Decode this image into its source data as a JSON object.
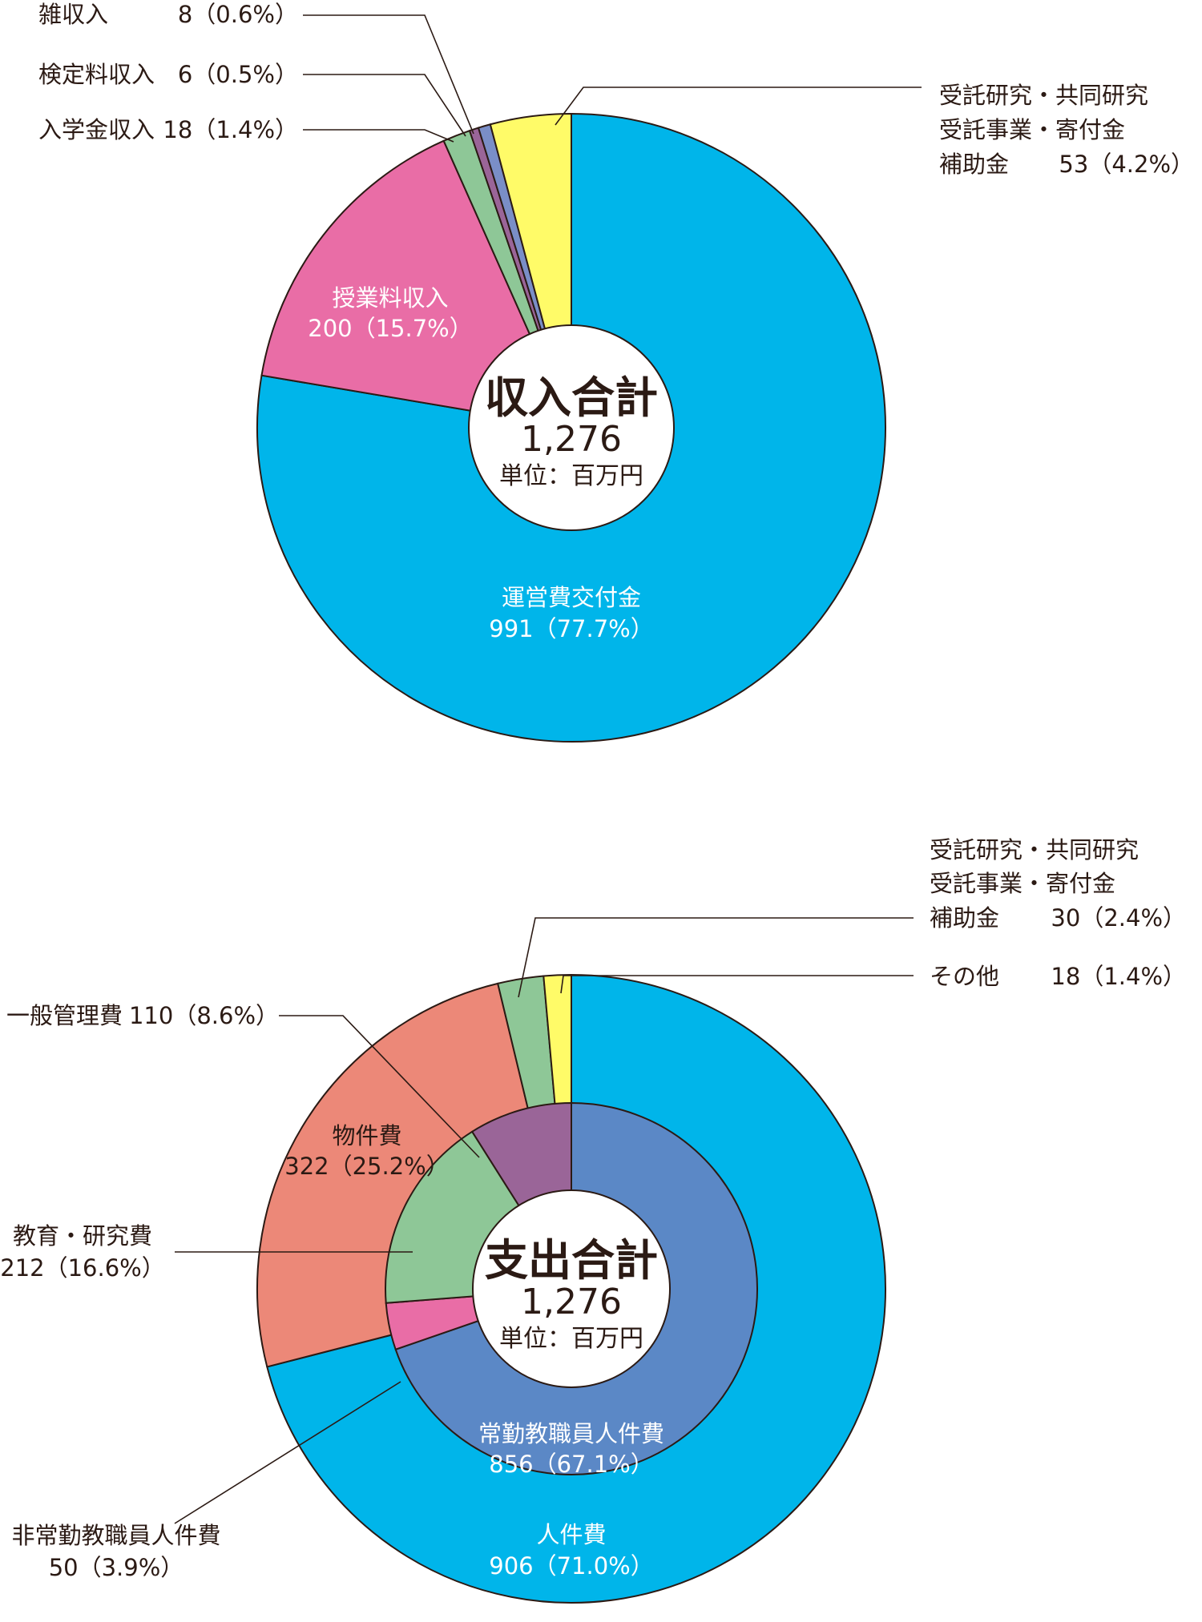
{
  "colors": {
    "cyan": "#00b5ea",
    "pink": "#e96da6",
    "green": "#8ec797",
    "purple": "#9a6598",
    "blue": "#7a8ec7",
    "yellow": "#fffb68",
    "salmon": "#ec8878",
    "steel": "#5b88c6",
    "text": "#2b1a14"
  },
  "chart_data": [
    {
      "type": "pie",
      "center": {
        "title": "収入合計",
        "total": "1,276",
        "unit": "単位：百万円"
      },
      "slices": [
        {
          "id": "unei",
          "name": "運営費交付金",
          "value": 991,
          "value_label": "991（77.7%）",
          "color": "cyan"
        },
        {
          "id": "jugyo",
          "name": "授業料収入",
          "value": 200,
          "value_label": "200（15.7%）",
          "color": "pink"
        },
        {
          "id": "nyugaku",
          "name": "入学金収入",
          "value": 18,
          "value_label": "18（1.4%）",
          "color": "green"
        },
        {
          "id": "kentei",
          "name": "検定料収入",
          "value": 6,
          "value_label": "6（0.5%）",
          "color": "purple"
        },
        {
          "id": "zatsu",
          "name": "雑収入",
          "value": 8,
          "value_label": "8（0.6%）",
          "color": "blue"
        },
        {
          "id": "jutaku",
          "name_lines": [
            "受託研究・共同研究",
            "受託事業・寄付金",
            "補助金"
          ],
          "value": 53,
          "value_label": "53（4.2%）",
          "color": "yellow"
        }
      ]
    },
    {
      "type": "pie",
      "center": {
        "title": "支出合計",
        "total": "1,276",
        "unit": "単位：百万円"
      },
      "outer": [
        {
          "id": "jinken",
          "name": "人件費",
          "value": 906,
          "value_label": "906（71.0%）",
          "color": "cyan"
        },
        {
          "id": "bukken",
          "name": "物件費",
          "value": 322,
          "value_label": "322（25.2%）",
          "color": "salmon"
        },
        {
          "id": "jutaku",
          "name_lines": [
            "受託研究・共同研究",
            "受託事業・寄付金",
            "補助金"
          ],
          "value": 30,
          "value_label": "30（2.4%）",
          "color": "green"
        },
        {
          "id": "sonota",
          "name": "その他",
          "value": 18,
          "value_label": "18（1.4%）",
          "color": "yellow"
        }
      ],
      "inner": [
        {
          "id": "jokin",
          "name": "常勤教職員人件費",
          "value": 856,
          "value_label": "856（67.1%）",
          "color": "steel"
        },
        {
          "id": "hijokin",
          "name": "非常勤教職員人件費",
          "value": 50,
          "value_label": "50（3.9%）",
          "color": "pink"
        },
        {
          "id": "kyoiku",
          "name": "教育・研究費",
          "value": 212,
          "value_label": "212（16.6%）",
          "color": "green"
        },
        {
          "id": "ippan",
          "name": "一般管理費",
          "value": 110,
          "value_label": "110（8.6%）",
          "color": "purple"
        }
      ]
    }
  ]
}
